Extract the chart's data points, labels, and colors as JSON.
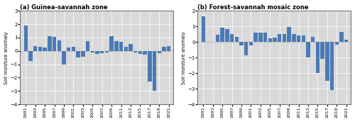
{
  "years": [
    1991,
    1992,
    1993,
    1994,
    1995,
    1996,
    1997,
    1998,
    1999,
    2000,
    2001,
    2002,
    2003,
    2004,
    2005,
    2006,
    2007,
    2008,
    2009,
    2010,
    2011,
    2012,
    2013,
    2014,
    2015,
    2016,
    2017,
    2018,
    2019,
    2020,
    2021
  ],
  "guinea_values": [
    1.9,
    -0.75,
    0.35,
    0.3,
    0.25,
    1.1,
    1.05,
    0.8,
    -1.0,
    0.25,
    0.3,
    -0.5,
    -0.45,
    0.75,
    -0.12,
    -0.2,
    -0.15,
    -0.1,
    1.1,
    0.75,
    0.7,
    0.3,
    0.5,
    -0.12,
    -0.2,
    -0.3,
    -2.3,
    -3.0,
    -0.15,
    0.3,
    0.35
  ],
  "forest_values": [
    1.65,
    0.0,
    0.0,
    0.45,
    0.9,
    0.85,
    0.5,
    0.35,
    -0.2,
    -0.85,
    -0.2,
    0.6,
    0.6,
    0.6,
    0.25,
    0.3,
    0.5,
    0.5,
    0.95,
    0.5,
    0.4,
    0.4,
    -1.0,
    0.35,
    -2.0,
    -1.1,
    -2.5,
    -3.1,
    -0.15,
    0.65,
    0.15
  ],
  "bar_color": "#4a7ab5",
  "bg_color": "#d9d9d9",
  "guinea_ylim": [
    -4,
    3
  ],
  "guinea_yticks": [
    -4,
    -3,
    -2,
    -1,
    0,
    1,
    2,
    3
  ],
  "forest_ylim": [
    -4,
    2
  ],
  "forest_yticks": [
    -4,
    -3,
    -2,
    -1,
    0,
    1,
    2
  ],
  "ylabel": "Soil moisture anomaly",
  "title_a": "(a) Guinea-savannah zone",
  "title_b": "(b) Forest-savannah mosaic zone",
  "tick_years": [
    1991,
    1993,
    1995,
    1997,
    1999,
    2001,
    2003,
    2005,
    2007,
    2009,
    2011,
    2013,
    2015,
    2017,
    2019,
    2021
  ]
}
